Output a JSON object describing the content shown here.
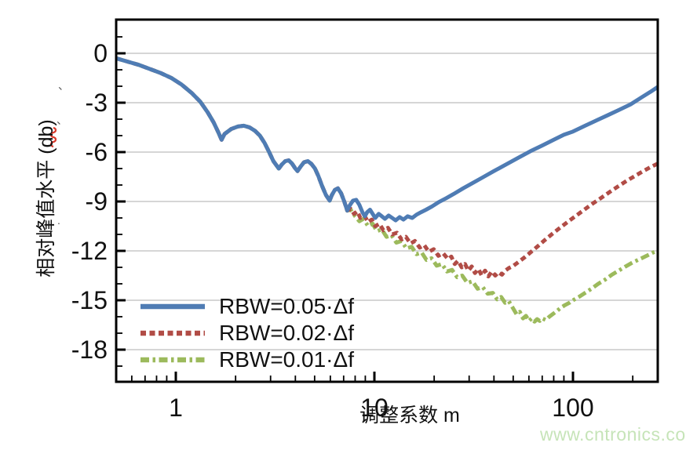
{
  "page": {
    "background": "#ffffff",
    "watermark": "www.cntronics.com",
    "watermark_color": "#c6e4b8"
  },
  "chart_data": {
    "type": "line",
    "title": "",
    "xlabel": "调整系数 m",
    "ylabel": "相对峰值水平 (db)",
    "x_scale": "log",
    "xlim": [
      0.5,
      267
    ],
    "ylim": [
      -20,
      2.05
    ],
    "x_major_ticks": [
      1,
      10,
      100
    ],
    "x_major_tick_labels": [
      "1",
      "10",
      "100"
    ],
    "x_minor_ticks": [
      0.6,
      0.7,
      0.8,
      0.9,
      2,
      3,
      4,
      5,
      6,
      7,
      8,
      9,
      20,
      30,
      40,
      50,
      60,
      70,
      80,
      90,
      200
    ],
    "y_major_ticks": [
      0,
      -3,
      -6,
      -9,
      -12,
      -15,
      -18
    ],
    "y_major_tick_labels": [
      "0",
      "-3",
      "-6",
      "-9",
      "-12",
      "-15",
      "-18"
    ],
    "y_minor_ticks": [
      1,
      -1,
      -2,
      -4,
      -5,
      -7,
      -8,
      -10,
      -11,
      -13,
      -14,
      -16,
      -17,
      -19
    ],
    "grid": "horizontal-only",
    "grid_color": "#c8c8c8",
    "axis_color": "#000000",
    "tick_label_color": "#111111",
    "legend_position": "inside-lower-left",
    "shared_points_note": "all three curves coincide for m<=7.3; shared_points are prepended to each series' own points",
    "shared_points": [
      [
        0.5,
        -0.3
      ],
      [
        0.57,
        -0.5
      ],
      [
        0.65,
        -0.7
      ],
      [
        0.74,
        -0.95
      ],
      [
        0.84,
        -1.2
      ],
      [
        0.95,
        -1.5
      ],
      [
        1.07,
        -1.9
      ],
      [
        1.2,
        -2.4
      ],
      [
        1.33,
        -2.95
      ],
      [
        1.45,
        -3.6
      ],
      [
        1.55,
        -4.2
      ],
      [
        1.63,
        -4.75
      ],
      [
        1.7,
        -5.25
      ],
      [
        1.76,
        -4.9
      ],
      [
        1.9,
        -4.6
      ],
      [
        2.05,
        -4.45
      ],
      [
        2.2,
        -4.4
      ],
      [
        2.35,
        -4.5
      ],
      [
        2.5,
        -4.7
      ],
      [
        2.65,
        -5.0
      ],
      [
        2.8,
        -5.45
      ],
      [
        2.95,
        -6.0
      ],
      [
        3.1,
        -6.55
      ],
      [
        3.3,
        -7.0
      ],
      [
        3.42,
        -6.75
      ],
      [
        3.56,
        -6.55
      ],
      [
        3.7,
        -6.5
      ],
      [
        3.85,
        -6.7
      ],
      [
        4.0,
        -7.0
      ],
      [
        4.1,
        -7.15
      ],
      [
        4.24,
        -6.9
      ],
      [
        4.42,
        -6.62
      ],
      [
        4.62,
        -6.55
      ],
      [
        4.82,
        -6.72
      ],
      [
        5.02,
        -7.0
      ],
      [
        5.22,
        -7.45
      ],
      [
        5.45,
        -8.05
      ],
      [
        5.7,
        -8.6
      ],
      [
        5.95,
        -8.95
      ],
      [
        6.1,
        -8.62
      ],
      [
        6.32,
        -8.3
      ],
      [
        6.55,
        -8.2
      ],
      [
        6.8,
        -8.5
      ],
      [
        7.05,
        -9.0
      ],
      [
        7.3,
        -9.55
      ]
    ],
    "series": [
      {
        "name": "RBW=0.05·Δf",
        "color": "#4f7cb4",
        "line_style": "solid",
        "points": [
          [
            7.5,
            -9.25
          ],
          [
            7.8,
            -8.95
          ],
          [
            8.1,
            -8.9
          ],
          [
            8.4,
            -9.2
          ],
          [
            8.7,
            -9.65
          ],
          [
            8.95,
            -9.9
          ],
          [
            9.2,
            -9.65
          ],
          [
            9.5,
            -9.5
          ],
          [
            9.8,
            -9.75
          ],
          [
            10.1,
            -10.0
          ],
          [
            10.5,
            -9.75
          ],
          [
            10.9,
            -9.9
          ],
          [
            11.3,
            -10.05
          ],
          [
            11.8,
            -9.85
          ],
          [
            12.3,
            -10.0
          ],
          [
            12.8,
            -10.15
          ],
          [
            13.4,
            -9.95
          ],
          [
            14.0,
            -10.1
          ],
          [
            14.7,
            -9.9
          ],
          [
            15.5,
            -10.0
          ],
          [
            16.3,
            -9.8
          ],
          [
            17.2,
            -9.65
          ],
          [
            18.2,
            -9.5
          ],
          [
            19.5,
            -9.3
          ],
          [
            21,
            -9.05
          ],
          [
            23,
            -8.8
          ],
          [
            25,
            -8.55
          ],
          [
            28,
            -8.2
          ],
          [
            31,
            -7.9
          ],
          [
            35,
            -7.55
          ],
          [
            40,
            -7.15
          ],
          [
            46,
            -6.75
          ],
          [
            53,
            -6.35
          ],
          [
            61,
            -5.95
          ],
          [
            70,
            -5.6
          ],
          [
            80,
            -5.25
          ],
          [
            90,
            -4.95
          ],
          [
            100,
            -4.75
          ],
          [
            115,
            -4.4
          ],
          [
            130,
            -4.1
          ],
          [
            150,
            -3.75
          ],
          [
            170,
            -3.45
          ],
          [
            195,
            -3.1
          ],
          [
            220,
            -2.7
          ],
          [
            245,
            -2.35
          ],
          [
            267,
            -2.05
          ]
        ]
      },
      {
        "name": "RBW=0.02·Δf",
        "color": "#b14c46",
        "line_style": "dashed",
        "points": [
          [
            7.6,
            -9.45
          ],
          [
            7.9,
            -9.75
          ],
          [
            8.2,
            -9.6
          ],
          [
            8.5,
            -10.0
          ],
          [
            8.9,
            -9.85
          ],
          [
            9.3,
            -10.25
          ],
          [
            9.7,
            -10.1
          ],
          [
            10.1,
            -10.5
          ],
          [
            10.6,
            -10.35
          ],
          [
            11.1,
            -10.75
          ],
          [
            11.7,
            -10.6
          ],
          [
            12.3,
            -11.0
          ],
          [
            13.0,
            -10.9
          ],
          [
            13.7,
            -11.3
          ],
          [
            14.4,
            -11.15
          ],
          [
            15.2,
            -11.55
          ],
          [
            16.0,
            -11.4
          ],
          [
            16.9,
            -11.8
          ],
          [
            17.8,
            -11.65
          ],
          [
            18.8,
            -12.05
          ],
          [
            19.9,
            -11.9
          ],
          [
            21.0,
            -12.3
          ],
          [
            22.2,
            -12.15
          ],
          [
            23.5,
            -12.5
          ],
          [
            24.4,
            -12.35
          ],
          [
            25.4,
            -12.8
          ],
          [
            26.4,
            -12.6
          ],
          [
            27.5,
            -13.0
          ],
          [
            28.6,
            -12.8
          ],
          [
            29.7,
            -13.2
          ],
          [
            30.9,
            -12.95
          ],
          [
            32.1,
            -13.35
          ],
          [
            33.4,
            -13.1
          ],
          [
            34.7,
            -13.5
          ],
          [
            36.1,
            -13.2
          ],
          [
            37.5,
            -13.55
          ],
          [
            39.0,
            -13.25
          ],
          [
            40.6,
            -13.5
          ],
          [
            42.2,
            -13.3
          ],
          [
            43.9,
            -13.45
          ],
          [
            45.6,
            -13.2
          ],
          [
            47.4,
            -13.05
          ],
          [
            50.2,
            -12.9
          ],
          [
            53.5,
            -12.65
          ],
          [
            57,
            -12.4
          ],
          [
            61,
            -12.1
          ],
          [
            66,
            -11.75
          ],
          [
            72,
            -11.35
          ],
          [
            79,
            -10.95
          ],
          [
            87,
            -10.55
          ],
          [
            95,
            -10.2
          ],
          [
            104,
            -9.85
          ],
          [
            114,
            -9.5
          ],
          [
            125,
            -9.15
          ],
          [
            138,
            -8.8
          ],
          [
            152,
            -8.45
          ],
          [
            168,
            -8.1
          ],
          [
            186,
            -7.75
          ],
          [
            205,
            -7.45
          ],
          [
            226,
            -7.15
          ],
          [
            247,
            -6.9
          ],
          [
            267,
            -6.7
          ]
        ]
      },
      {
        "name": "RBW=0.01·Δf",
        "color": "#9cba5c",
        "line_style": "dash-dot",
        "points": [
          [
            7.6,
            -9.5
          ],
          [
            8.0,
            -9.9
          ],
          [
            8.4,
            -10.2
          ],
          [
            8.8,
            -10.05
          ],
          [
            9.3,
            -10.5
          ],
          [
            9.8,
            -10.35
          ],
          [
            10.3,
            -10.8
          ],
          [
            10.9,
            -10.7
          ],
          [
            11.5,
            -11.15
          ],
          [
            12.2,
            -11.05
          ],
          [
            12.9,
            -11.5
          ],
          [
            13.7,
            -11.4
          ],
          [
            14.5,
            -11.85
          ],
          [
            15.4,
            -11.75
          ],
          [
            16.3,
            -12.2
          ],
          [
            17.3,
            -12.1
          ],
          [
            18.3,
            -12.55
          ],
          [
            19.4,
            -12.45
          ],
          [
            20.6,
            -12.9
          ],
          [
            21.9,
            -12.8
          ],
          [
            23.2,
            -13.25
          ],
          [
            24.6,
            -13.15
          ],
          [
            26.1,
            -13.6
          ],
          [
            27.7,
            -13.5
          ],
          [
            29.4,
            -13.95
          ],
          [
            31.2,
            -13.85
          ],
          [
            33.1,
            -14.3
          ],
          [
            35.1,
            -14.2
          ],
          [
            37.2,
            -14.6
          ],
          [
            39.5,
            -14.55
          ],
          [
            41.5,
            -14.95
          ],
          [
            43.5,
            -14.8
          ],
          [
            45.5,
            -15.15
          ],
          [
            47.5,
            -15.05
          ],
          [
            50,
            -15.5
          ],
          [
            52,
            -15.85
          ],
          [
            54,
            -15.7
          ],
          [
            56,
            -16.1
          ],
          [
            58,
            -15.95
          ],
          [
            60,
            -16.25
          ],
          [
            62,
            -16.1
          ],
          [
            64,
            -16.3
          ],
          [
            66,
            -16.15
          ],
          [
            68,
            -16.25
          ],
          [
            70,
            -16.1
          ],
          [
            73,
            -16.2
          ],
          [
            76,
            -16.0
          ],
          [
            79,
            -15.85
          ],
          [
            83,
            -15.65
          ],
          [
            87,
            -15.45
          ],
          [
            91,
            -15.3
          ],
          [
            96,
            -15.15
          ],
          [
            100,
            -15.0
          ],
          [
            107,
            -14.8
          ],
          [
            115,
            -14.55
          ],
          [
            124,
            -14.3
          ],
          [
            134,
            -14.0
          ],
          [
            145,
            -13.75
          ],
          [
            157,
            -13.45
          ],
          [
            170,
            -13.2
          ],
          [
            184,
            -12.95
          ],
          [
            200,
            -12.7
          ],
          [
            217,
            -12.5
          ],
          [
            235,
            -12.3
          ],
          [
            253,
            -12.1
          ],
          [
            267,
            -12.0
          ]
        ]
      }
    ],
    "annotations": {
      "spellcheck_squiggle": "red wavy underline beneath the (db) part of the y-axis title",
      "stray_marks": [
        "、",
        "、",
        "."
      ]
    }
  }
}
